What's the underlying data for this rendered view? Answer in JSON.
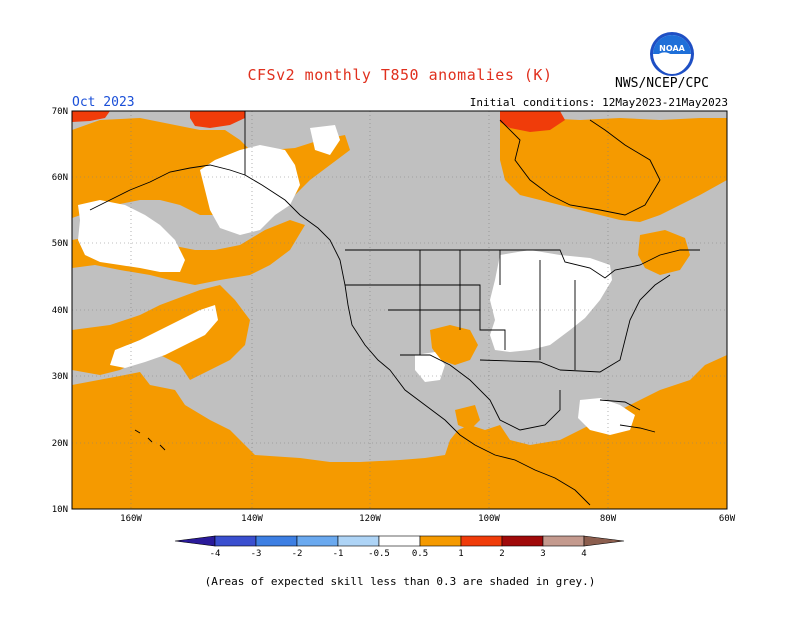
{
  "header": {
    "title": "CFSv2 monthly T850 anomalies (K)",
    "agency": "NWS/NCEP/CPC",
    "month": "Oct 2023",
    "initial_conditions": "Initial conditions: 12May2023-21May2023",
    "logo_text": "NOAA"
  },
  "map": {
    "lat_labels": [
      "70N",
      "60N",
      "50N",
      "40N",
      "30N",
      "20N",
      "10N"
    ],
    "lon_labels": [
      "160W",
      "140W",
      "120W",
      "100W",
      "80W",
      "60W"
    ],
    "colors": {
      "grey_low_skill": "#c0c0c0",
      "neutral": "#ffffff",
      "warm_0p5_1": "#f59a00",
      "warm_1_2": "#f03c0a",
      "warm_2_3": "#a00a0a",
      "cold_m1_m0p5": "#7cb7f2"
    }
  },
  "colorbar": {
    "tick_labels": [
      "-4",
      "-3",
      "-2",
      "-1",
      "-0.5",
      "0.5",
      "1",
      "2",
      "3",
      "4"
    ],
    "colors": [
      "#2a1a9a",
      "#3a4fcf",
      "#3d7fe3",
      "#6aa9ef",
      "#aed4f6",
      "#ffffff",
      "#f59a00",
      "#f03c0a",
      "#a00a0a",
      "#c49a8e",
      "#8c5e4e"
    ]
  },
  "footnote": "(Areas of expected skill less than 0.3 are shaded in grey.)"
}
